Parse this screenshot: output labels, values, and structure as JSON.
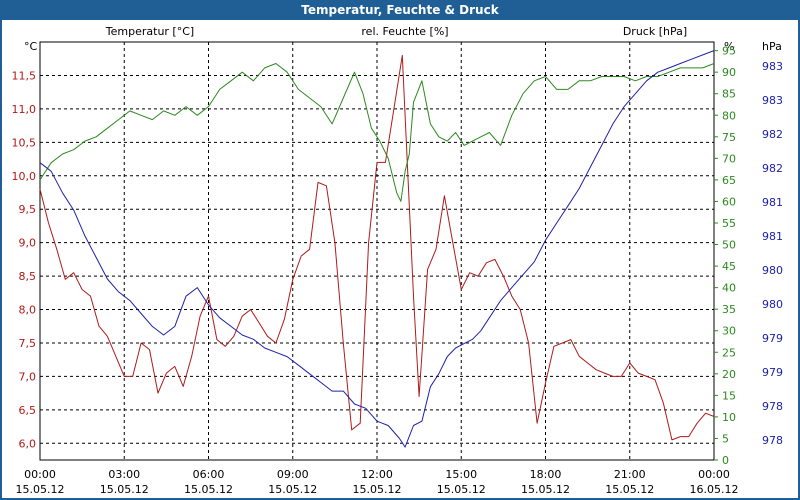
{
  "window_title": "Temperatur, Feuchte & Druck",
  "colors": {
    "frame": "#1f5f96",
    "temperature": "#b01a1a",
    "humidity": "#2c8a1e",
    "pressure": "#1e22a6",
    "grid": "#000000"
  },
  "chart_data": {
    "type": "line",
    "title": "Temperatur, Feuchte & Druck",
    "grid": true,
    "x_ticks": [
      {
        "time": "00:00",
        "date": "15.05.12",
        "h": 0
      },
      {
        "time": "03:00",
        "date": "15.05.12",
        "h": 3
      },
      {
        "time": "06:00",
        "date": "15.05.12",
        "h": 6
      },
      {
        "time": "09:00",
        "date": "15.05.12",
        "h": 9
      },
      {
        "time": "12:00",
        "date": "15.05.12",
        "h": 12
      },
      {
        "time": "15:00",
        "date": "15.05.12",
        "h": 15
      },
      {
        "time": "18:00",
        "date": "15.05.12",
        "h": 18
      },
      {
        "time": "21:00",
        "date": "15.05.12",
        "h": 21
      },
      {
        "time": "00:00",
        "date": "16.05.12",
        "h": 24
      }
    ],
    "xlim": [
      0,
      24
    ],
    "axes": {
      "temperature": {
        "unit": "°C",
        "label": "Temperatur [°C]",
        "ylim": [
          5.75,
          12.0
        ],
        "ticks": [
          "6,0",
          "6,5",
          "7,0",
          "7,5",
          "8,0",
          "8,5",
          "9,0",
          "9,5",
          "10,0",
          "10,5",
          "11,0",
          "11,5"
        ],
        "tick_values": [
          6.0,
          6.5,
          7.0,
          7.5,
          8.0,
          8.5,
          9.0,
          9.5,
          10.0,
          10.5,
          11.0,
          11.5
        ]
      },
      "humidity": {
        "unit": "%",
        "label": "rel. Feuchte [%]",
        "ylim": [
          0,
          97
        ],
        "ticks": [
          "0",
          "5",
          "10",
          "15",
          "20",
          "25",
          "30",
          "35",
          "40",
          "45",
          "50",
          "55",
          "60",
          "65",
          "70",
          "75",
          "80",
          "85",
          "90",
          "95"
        ],
        "tick_values": [
          0,
          5,
          10,
          15,
          20,
          25,
          30,
          35,
          40,
          45,
          50,
          55,
          60,
          65,
          70,
          75,
          80,
          85,
          90,
          95
        ]
      },
      "pressure": {
        "unit": "hPa",
        "label": "Druck [hPa]",
        "ticks": [
          "983",
          "983",
          "982",
          "982",
          "981",
          "981",
          "980",
          "980",
          "979",
          "979",
          "978",
          "978"
        ]
      }
    },
    "series": [
      {
        "name": "Temperatur [°C]",
        "axis": "temperature",
        "x": [
          0,
          0.3,
          0.6,
          0.9,
          1.2,
          1.5,
          1.8,
          2.1,
          2.4,
          2.7,
          3.0,
          3.3,
          3.6,
          3.9,
          4.2,
          4.5,
          4.8,
          5.1,
          5.4,
          5.7,
          6.0,
          6.3,
          6.6,
          6.9,
          7.2,
          7.5,
          7.8,
          8.1,
          8.4,
          8.7,
          9.0,
          9.3,
          9.6,
          9.9,
          10.2,
          10.5,
          10.8,
          11.1,
          11.4,
          11.7,
          12.0,
          12.3,
          12.6,
          12.9,
          13.1,
          13.3,
          13.5,
          13.8,
          14.1,
          14.4,
          14.7,
          15.0,
          15.3,
          15.6,
          15.9,
          16.2,
          16.5,
          16.8,
          17.1,
          17.4,
          17.7,
          18.0,
          18.3,
          18.6,
          18.9,
          19.2,
          19.5,
          19.8,
          20.1,
          20.4,
          20.7,
          21.0,
          21.3,
          21.6,
          21.9,
          22.2,
          22.5,
          22.8,
          23.1,
          23.4,
          23.7,
          24.0
        ],
        "values": [
          9.8,
          9.3,
          8.9,
          8.45,
          8.55,
          8.3,
          8.2,
          7.75,
          7.6,
          7.3,
          7.0,
          7.0,
          7.5,
          7.4,
          6.75,
          7.05,
          7.15,
          6.85,
          7.3,
          7.9,
          8.2,
          7.55,
          7.45,
          7.6,
          7.9,
          8.0,
          7.8,
          7.6,
          7.5,
          7.85,
          8.45,
          8.8,
          8.9,
          9.9,
          9.85,
          9.0,
          7.5,
          6.2,
          6.3,
          9.0,
          10.2,
          10.2,
          11.0,
          11.8,
          10.0,
          8.2,
          6.7,
          8.6,
          8.9,
          9.7,
          9.0,
          8.3,
          8.55,
          8.5,
          8.7,
          8.75,
          8.5,
          8.2,
          8.0,
          7.5,
          6.3,
          6.9,
          7.45,
          7.5,
          7.55,
          7.3,
          7.2,
          7.1,
          7.05,
          7.0,
          7.0,
          7.2,
          7.05,
          7.0,
          6.95,
          6.6,
          6.05,
          6.1,
          6.1,
          6.3,
          6.45,
          6.4
        ]
      },
      {
        "name": "rel. Feuchte [%]",
        "axis": "humidity",
        "x": [
          0,
          0.4,
          0.8,
          1.2,
          1.6,
          2.0,
          2.4,
          2.8,
          3.2,
          3.6,
          4.0,
          4.4,
          4.8,
          5.2,
          5.6,
          6.0,
          6.4,
          6.8,
          7.2,
          7.6,
          8.0,
          8.4,
          8.8,
          9.2,
          9.6,
          10.0,
          10.4,
          10.8,
          11.2,
          11.5,
          11.8,
          12.1,
          12.4,
          12.7,
          12.85,
          13.0,
          13.15,
          13.3,
          13.6,
          13.9,
          14.2,
          14.5,
          14.8,
          15.1,
          15.4,
          15.7,
          16.0,
          16.4,
          16.8,
          17.2,
          17.6,
          18.0,
          18.4,
          18.8,
          19.2,
          19.6,
          20.0,
          20.4,
          20.8,
          21.2,
          21.6,
          22.0,
          22.4,
          22.8,
          23.2,
          23.6,
          24.0
        ],
        "values": [
          65,
          69,
          71,
          72,
          74,
          75,
          77,
          79,
          81,
          80,
          79,
          81,
          80,
          82,
          80,
          82,
          86,
          88,
          90,
          88,
          91,
          92,
          90,
          86,
          84,
          82,
          78,
          84,
          90,
          85,
          77,
          74,
          70,
          62,
          60,
          67,
          71,
          83,
          88,
          78,
          75,
          74,
          76,
          73,
          74,
          75,
          76,
          73,
          80,
          85,
          88,
          89,
          86,
          86,
          88,
          88,
          89,
          89,
          89,
          88,
          89,
          89,
          90,
          91,
          91,
          91,
          92
        ]
      },
      {
        "name": "Druck [hPa]",
        "axis": "pressure",
        "x": [
          0,
          0.4,
          0.8,
          1.2,
          1.6,
          2.0,
          2.4,
          2.8,
          3.2,
          3.6,
          4.0,
          4.4,
          4.8,
          5.2,
          5.6,
          6.0,
          6.4,
          6.8,
          7.2,
          7.6,
          8.0,
          8.4,
          8.8,
          9.2,
          9.6,
          10.0,
          10.4,
          10.8,
          11.2,
          11.6,
          12.0,
          12.4,
          12.8,
          13.0,
          13.3,
          13.6,
          13.9,
          14.2,
          14.5,
          14.8,
          15.1,
          15.4,
          15.7,
          16.0,
          16.4,
          16.8,
          17.2,
          17.6,
          18.0,
          18.4,
          18.8,
          19.2,
          19.6,
          20.0,
          20.4,
          20.8,
          21.2,
          21.6,
          22.0,
          22.4,
          22.8,
          23.2,
          23.6,
          24.0
        ],
        "pixel_free_values": [
          69,
          67,
          62,
          58,
          52,
          47,
          42,
          39,
          37,
          34,
          31,
          29,
          31,
          38,
          40,
          36,
          33,
          31,
          29,
          28,
          26,
          25,
          24,
          22,
          20,
          18,
          16,
          16,
          13,
          12,
          9,
          8,
          5,
          3,
          8,
          9,
          17,
          20,
          24,
          26,
          27,
          28,
          30,
          33,
          37,
          40,
          43,
          46,
          51,
          55,
          59,
          63,
          68,
          73,
          78,
          82,
          85,
          88,
          90,
          91,
          92,
          93,
          94,
          95
        ]
      }
    ]
  }
}
